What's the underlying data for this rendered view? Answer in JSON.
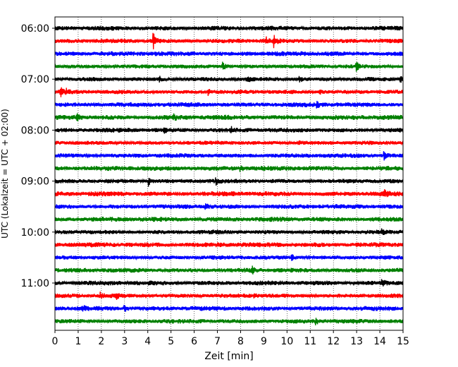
{
  "chart_data": {
    "type": "line",
    "title": "",
    "xlabel": "Zeit  [min]",
    "ylabel": "UTC (Lokalzeit = UTC + 02:00)",
    "xlim": [
      0,
      15
    ],
    "x_ticks": [
      0,
      1,
      2,
      3,
      4,
      5,
      6,
      7,
      8,
      9,
      10,
      11,
      12,
      13,
      14,
      15
    ],
    "x_tick_labels": [
      "0",
      "1",
      "2",
      "3",
      "4",
      "5",
      "6",
      "7",
      "8",
      "9",
      "10",
      "11",
      "12",
      "13",
      "14",
      "15"
    ],
    "y_tick_labels": [
      "06:00",
      "07:00",
      "08:00",
      "09:00",
      "10:00",
      "11:00"
    ],
    "vertical_grid": true,
    "grid_style": "dotted",
    "trace_minutes": 15,
    "color_cycle": [
      "#000000",
      "#ff0000",
      "#0000ff",
      "#008000"
    ],
    "series": [
      {
        "start": "06:00",
        "color": "black"
      },
      {
        "start": "06:15",
        "color": "red"
      },
      {
        "start": "06:30",
        "color": "blue"
      },
      {
        "start": "06:45",
        "color": "green"
      },
      {
        "start": "07:00",
        "color": "black"
      },
      {
        "start": "07:15",
        "color": "red"
      },
      {
        "start": "07:30",
        "color": "blue"
      },
      {
        "start": "07:45",
        "color": "green"
      },
      {
        "start": "08:00",
        "color": "black"
      },
      {
        "start": "08:15",
        "color": "red"
      },
      {
        "start": "08:30",
        "color": "blue"
      },
      {
        "start": "08:45",
        "color": "green"
      },
      {
        "start": "09:00",
        "color": "black"
      },
      {
        "start": "09:15",
        "color": "red"
      },
      {
        "start": "09:30",
        "color": "blue"
      },
      {
        "start": "09:45",
        "color": "green"
      },
      {
        "start": "10:00",
        "color": "black"
      },
      {
        "start": "10:15",
        "color": "red"
      },
      {
        "start": "10:30",
        "color": "blue"
      },
      {
        "start": "10:45",
        "color": "green"
      },
      {
        "start": "11:00",
        "color": "black"
      },
      {
        "start": "11:15",
        "color": "red"
      },
      {
        "start": "11:30",
        "color": "blue"
      },
      {
        "start": "11:45",
        "color": "green"
      }
    ],
    "events": [
      {
        "trace": "06:15",
        "minute": 4.25,
        "amplitude": 1.0
      },
      {
        "trace": "06:15",
        "minute": 9.45,
        "amplitude": 0.8
      },
      {
        "trace": "06:15",
        "minute": 9.1,
        "amplitude": 0.35
      },
      {
        "trace": "06:45",
        "minute": 7.25,
        "amplitude": 0.5
      },
      {
        "trace": "06:45",
        "minute": 13.0,
        "amplitude": 0.45
      },
      {
        "trace": "07:00",
        "minute": 4.5,
        "amplitude": 0.3
      },
      {
        "trace": "07:00",
        "minute": 8.3,
        "amplitude": 0.3
      },
      {
        "trace": "07:00",
        "minute": 10.55,
        "amplitude": 0.35
      },
      {
        "trace": "07:00",
        "minute": 14.9,
        "amplitude": 0.3
      },
      {
        "trace": "07:15",
        "minute": 0.25,
        "amplitude": 0.5
      },
      {
        "trace": "07:15",
        "minute": 0.5,
        "amplitude": 0.35
      },
      {
        "trace": "07:15",
        "minute": 6.6,
        "amplitude": 0.4
      },
      {
        "trace": "07:15",
        "minute": 11.4,
        "amplitude": 0.4
      },
      {
        "trace": "07:30",
        "minute": 11.3,
        "amplitude": 0.3
      },
      {
        "trace": "07:45",
        "minute": 0.95,
        "amplitude": 0.5
      },
      {
        "trace": "07:45",
        "minute": 5.1,
        "amplitude": 0.35
      },
      {
        "trace": "08:00",
        "minute": 4.7,
        "amplitude": 0.3
      },
      {
        "trace": "08:00",
        "minute": 7.6,
        "amplitude": 0.3
      },
      {
        "trace": "08:15",
        "minute": 10.5,
        "amplitude": 0.3
      },
      {
        "trace": "08:30",
        "minute": 14.2,
        "amplitude": 0.4
      },
      {
        "trace": "08:45",
        "minute": 8.0,
        "amplitude": 0.3
      },
      {
        "trace": "09:00",
        "minute": 4.05,
        "amplitude": 0.55
      },
      {
        "trace": "09:00",
        "minute": 6.95,
        "amplitude": 0.3
      },
      {
        "trace": "09:15",
        "minute": 14.2,
        "amplitude": 0.35
      },
      {
        "trace": "09:30",
        "minute": 6.5,
        "amplitude": 0.3
      },
      {
        "trace": "10:00",
        "minute": 14.1,
        "amplitude": 0.25
      },
      {
        "trace": "10:30",
        "minute": 10.2,
        "amplitude": 0.35
      },
      {
        "trace": "10:45",
        "minute": 8.5,
        "amplitude": 0.35
      },
      {
        "trace": "11:00",
        "minute": 14.1,
        "amplitude": 0.35
      },
      {
        "trace": "11:15",
        "minute": 1.95,
        "amplitude": 0.35
      },
      {
        "trace": "11:15",
        "minute": 2.65,
        "amplitude": 0.3
      },
      {
        "trace": "11:15",
        "minute": 8.6,
        "amplitude": 0.25
      },
      {
        "trace": "11:30",
        "minute": 1.2,
        "amplitude": 0.3
      },
      {
        "trace": "11:30",
        "minute": 3.0,
        "amplitude": 0.4
      },
      {
        "trace": "11:45",
        "minute": 11.25,
        "amplitude": 0.3
      }
    ]
  }
}
